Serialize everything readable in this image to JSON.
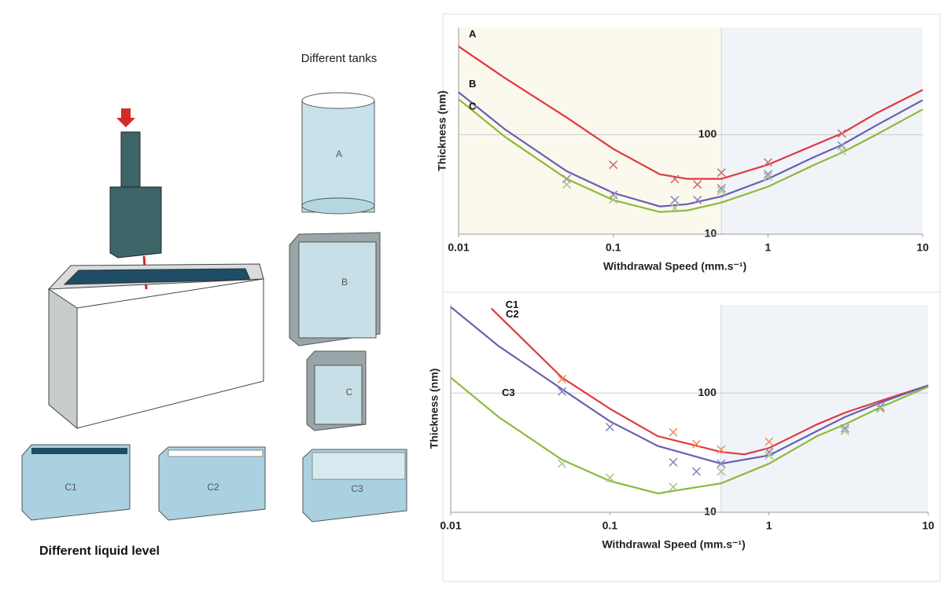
{
  "diagram": {
    "tanks_title": "Different tanks",
    "tank_a": "A",
    "tank_b": "B",
    "tank_c": "C",
    "level_1": "C1",
    "level_2": "C2",
    "level_3": "C3",
    "levels_title": "Different liquid level"
  },
  "chart_data": [
    {
      "type": "line",
      "xlabel": "Withdrawal Speed (mm.s⁻¹)",
      "ylabel": "Thickness (nm)",
      "xscale": "log",
      "yscale": "log",
      "xlim": [
        0.01,
        10
      ],
      "ylim": [
        10,
        1200
      ],
      "xticks": [
        0.01,
        0.1,
        1,
        10
      ],
      "yticks": [
        10,
        100
      ],
      "grid": true,
      "split_x": 0.5,
      "region_colors": [
        "#fbf8ee",
        "#f0f4f8"
      ],
      "series": [
        {
          "name": "A",
          "color": "#e0393e",
          "marker_color": "#c8707a",
          "x": [
            0.01,
            0.02,
            0.05,
            0.1,
            0.2,
            0.3,
            0.5,
            1,
            2,
            3,
            5,
            10
          ],
          "values": [
            774,
            371,
            149,
            72,
            40,
            36,
            36,
            50,
            79,
            103,
            164,
            283
          ],
          "points_x": [
            0.1,
            0.25,
            0.35,
            0.5,
            1,
            3
          ],
          "points": [
            49.9,
            35.9,
            31.6,
            41.6,
            52.7,
            103
          ]
        },
        {
          "name": "B",
          "color": "#6a5fb0",
          "marker_color": "#8f86c4",
          "x": [
            0.01,
            0.02,
            0.05,
            0.1,
            0.2,
            0.3,
            0.5,
            1,
            2,
            3,
            5,
            10
          ],
          "values": [
            268,
            113,
            43,
            26,
            19,
            20,
            24,
            36,
            60,
            79,
            124,
            223
          ],
          "points_x": [
            0.05,
            0.1,
            0.25,
            0.35,
            0.5,
            1,
            3
          ],
          "points": [
            36,
            24.9,
            22,
            22,
            28.9,
            40,
            78
          ]
        },
        {
          "name": "C",
          "color": "#8dba3c",
          "marker_color": "#a9c98a",
          "x": [
            0.01,
            0.02,
            0.05,
            0.1,
            0.2,
            0.3,
            0.5,
            1,
            2,
            3,
            5,
            10
          ],
          "values": [
            228,
            95,
            36,
            22,
            16.7,
            17.3,
            20.8,
            30,
            50,
            66,
            100,
            180
          ],
          "points_x": [
            0.05,
            0.1,
            0.25,
            0.5,
            1,
            3
          ],
          "points": [
            31.6,
            22.3,
            18.3,
            27.3,
            37.9,
            69
          ]
        }
      ]
    },
    {
      "type": "line",
      "xlabel": "Withdrawal Speed (mm.s⁻¹)",
      "ylabel": "Thickness (nm)",
      "xscale": "log",
      "yscale": "log",
      "xlim": [
        0.01,
        10
      ],
      "ylim": [
        10,
        550
      ],
      "xticks": [
        0.01,
        0.1,
        1,
        10
      ],
      "yticks": [
        10,
        100
      ],
      "grid": true,
      "split_x": 0.5,
      "region_colors": [
        "#ffffff",
        "#f0f4f8"
      ],
      "series": [
        {
          "name": "C1",
          "color": "#e0393e",
          "marker_color": "#f0915a",
          "x": [
            0.018,
            0.05,
            0.1,
            0.2,
            0.5,
            0.7,
            1,
            2,
            3,
            5,
            10
          ],
          "values": [
            513,
            135,
            74,
            43.5,
            32.1,
            30.6,
            34.6,
            54.6,
            68.5,
            86,
            116
          ],
          "points_x": [
            0.05,
            0.25,
            0.35,
            0.5,
            1,
            3,
            5
          ],
          "points": [
            131,
            46.9,
            37.4,
            33.6,
            39.1,
            48.3,
            76
          ]
        },
        {
          "name": "C2",
          "color": "#6a5fb0",
          "marker_color": "#8f86c4",
          "x": [
            0.01,
            0.02,
            0.05,
            0.1,
            0.2,
            0.5,
            1,
            2,
            3,
            5,
            10
          ],
          "values": [
            528,
            248,
            108,
            58,
            36,
            25.6,
            30,
            48,
            63,
            83,
            116
          ],
          "points_x": [
            0.05,
            0.1,
            0.25,
            0.35,
            0.5,
            1,
            3,
            5
          ],
          "points": [
            103,
            52,
            26.3,
            22,
            25.6,
            32,
            50.6,
            77
          ]
        },
        {
          "name": "C3",
          "color": "#8dba3c",
          "marker_color": "#a9c98a",
          "x": [
            0.01,
            0.02,
            0.05,
            0.1,
            0.2,
            0.5,
            1,
            2,
            3,
            5,
            10
          ],
          "values": [
            135,
            63,
            27.6,
            18.3,
            14.4,
            17.5,
            25.6,
            43.5,
            54.6,
            76,
            113
          ],
          "points_x": [
            0.05,
            0.1,
            0.25,
            0.5,
            1,
            3,
            5
          ],
          "points": [
            25.6,
            19.5,
            16.3,
            22,
            30,
            48.3,
            74
          ]
        }
      ]
    }
  ]
}
